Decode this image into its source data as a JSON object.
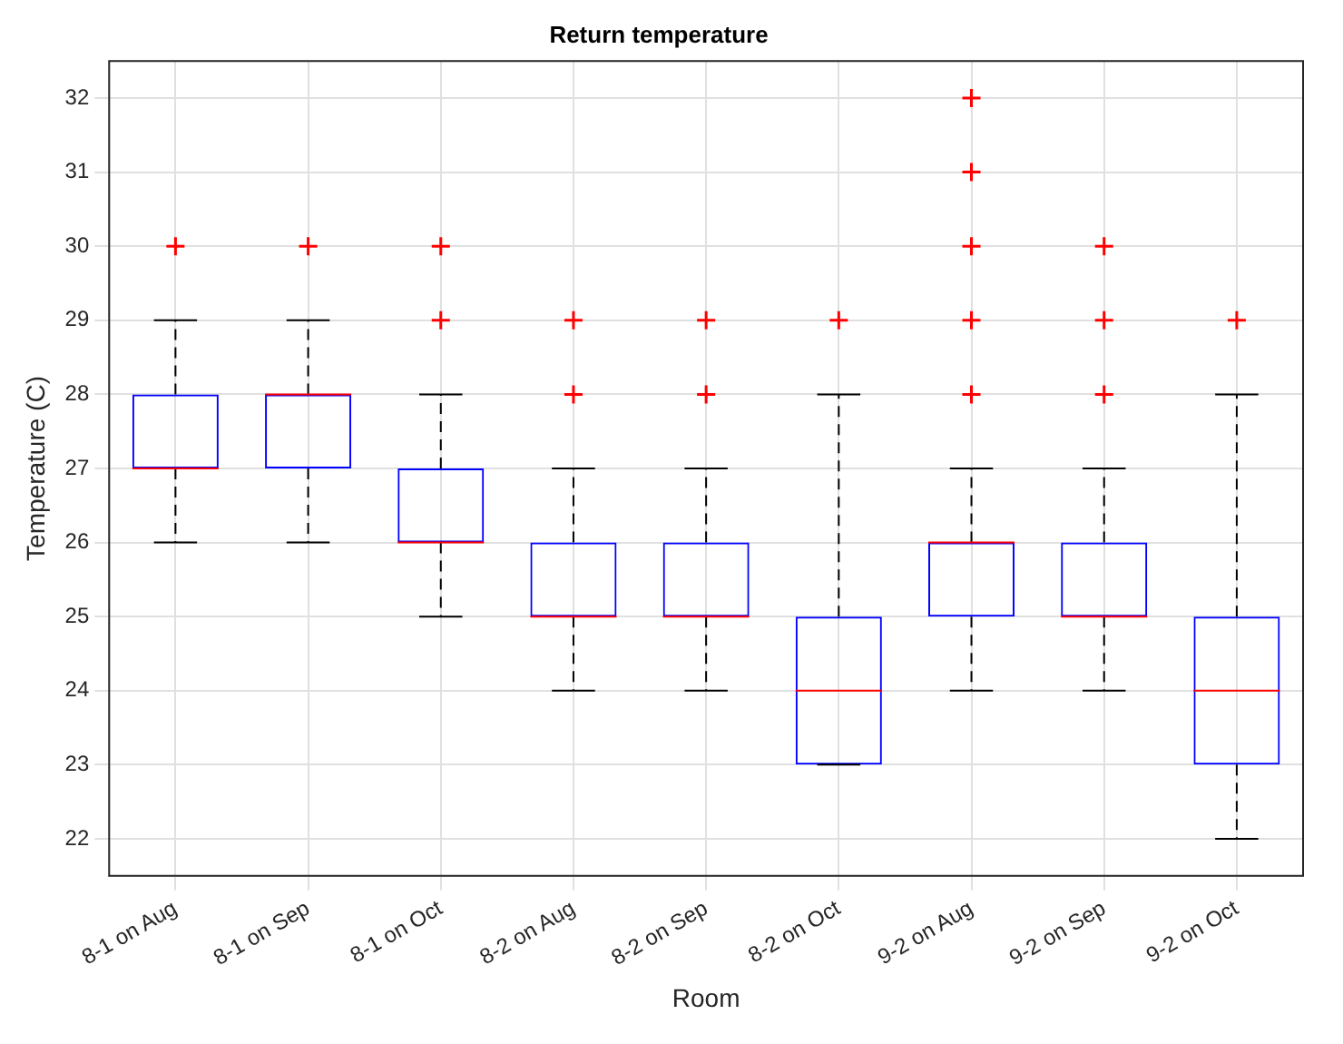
{
  "chart_data": {
    "type": "box",
    "title": "Return temperature",
    "xlabel": "Room",
    "ylabel": "Temperature (C)",
    "categories": [
      "8-1 on Aug",
      "8-1 on Sep",
      "8-1 on Oct",
      "8-2 on Aug",
      "8-2 on Sep",
      "8-2 on Oct",
      "9-2 on Aug",
      "9-2 on Sep",
      "9-2 on Oct"
    ],
    "color": "#0000ff",
    "boxes": [
      {
        "low": 26,
        "q1": 27,
        "median": 27,
        "q3": 28,
        "high": 29,
        "outliers": [
          30
        ]
      },
      {
        "low": 26,
        "q1": 27,
        "median": 28,
        "q3": 28,
        "high": 29,
        "outliers": [
          30
        ]
      },
      {
        "low": 25,
        "q1": 26,
        "median": 26,
        "q3": 27,
        "high": 28,
        "outliers": [
          29,
          30
        ]
      },
      {
        "low": 24,
        "q1": 25,
        "median": 25,
        "q3": 26,
        "high": 27,
        "outliers": [
          28,
          29
        ]
      },
      {
        "low": 24,
        "q1": 25,
        "median": 25,
        "q3": 26,
        "high": 27,
        "outliers": [
          28,
          29
        ]
      },
      {
        "low": 23,
        "q1": 23,
        "median": 24,
        "q3": 25,
        "high": 28,
        "outliers": [
          29
        ]
      },
      {
        "low": 24,
        "q1": 25,
        "median": 26,
        "q3": 26,
        "high": 27,
        "outliers": [
          28,
          29,
          30,
          31,
          32
        ]
      },
      {
        "low": 24,
        "q1": 25,
        "median": 25,
        "q3": 26,
        "high": 27,
        "outliers": [
          28,
          29,
          30
        ]
      },
      {
        "low": 22,
        "q1": 23,
        "median": 24,
        "q3": 25,
        "high": 28,
        "outliers": [
          29
        ]
      }
    ],
    "ylim": [
      21.5,
      32.5
    ],
    "yticks": [
      22,
      23,
      24,
      25,
      26,
      27,
      28,
      29,
      30,
      31,
      32
    ],
    "grid": true,
    "marker": "cross",
    "legend": false
  }
}
